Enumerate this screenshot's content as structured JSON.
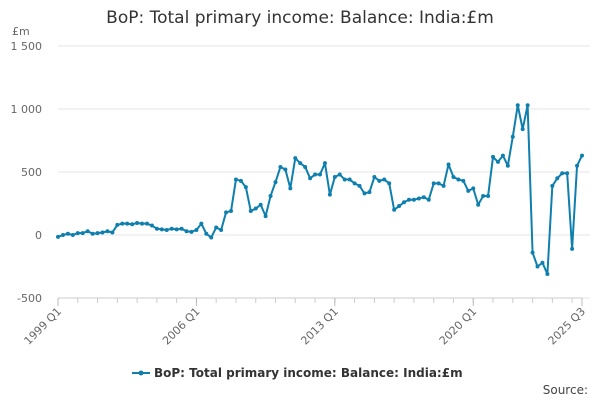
{
  "chart_data": {
    "type": "line",
    "title": "BoP: Total primary income: Balance: India:£m",
    "ylabel": "£m",
    "ylim": [
      -500,
      1500
    ],
    "yticks": [
      -500,
      0,
      500,
      1000,
      1500
    ],
    "ytick_labels": [
      "-500",
      "0",
      "500",
      "1 000",
      "1 500"
    ],
    "xtick_labels": [
      "1999 Q1",
      "2006 Q1",
      "2013 Q1",
      "2020 Q1",
      "2025 Q3"
    ],
    "grid": true,
    "legend_position": "bottom",
    "source_label": "Source:",
    "series": [
      {
        "name": "BoP: Total primary income: Balance: India:£m",
        "color": "#0f7fae",
        "x_start": "1999 Q1",
        "x_end": "2025 Q3",
        "values": [
          -15,
          0,
          10,
          0,
          15,
          15,
          30,
          10,
          15,
          20,
          30,
          20,
          80,
          90,
          90,
          85,
          95,
          90,
          90,
          75,
          50,
          45,
          40,
          50,
          45,
          50,
          30,
          25,
          40,
          90,
          10,
          -20,
          60,
          40,
          180,
          190,
          440,
          430,
          380,
          190,
          210,
          240,
          150,
          310,
          420,
          540,
          520,
          370,
          610,
          570,
          540,
          450,
          480,
          480,
          570,
          320,
          460,
          480,
          440,
          440,
          410,
          390,
          330,
          340,
          460,
          430,
          440,
          410,
          200,
          230,
          260,
          280,
          280,
          290,
          300,
          280,
          410,
          410,
          390,
          560,
          460,
          440,
          430,
          350,
          370,
          240,
          310,
          310,
          620,
          580,
          630,
          550,
          780,
          1030,
          840,
          1030,
          -140,
          -250,
          -220,
          -310,
          390,
          450,
          490,
          490,
          -110,
          550,
          630
        ]
      }
    ]
  }
}
